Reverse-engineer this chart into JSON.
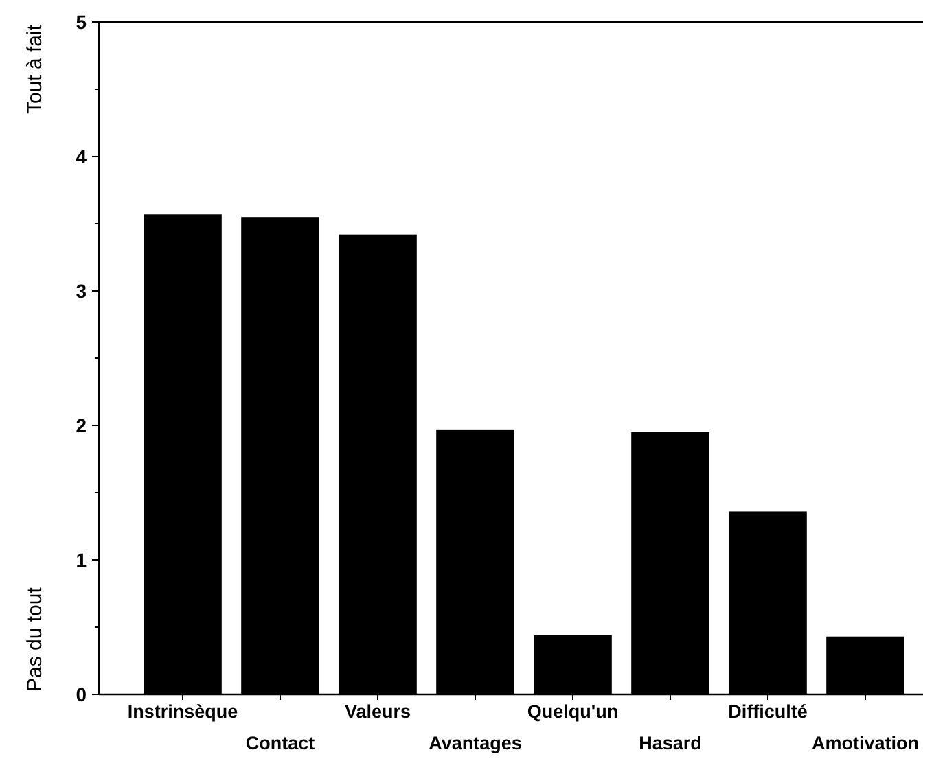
{
  "chart_data": {
    "type": "bar",
    "categories": [
      "Instrinsèque",
      "Contact",
      "Valeurs",
      "Avantages",
      "Quelqu'un",
      "Hasard",
      "Difficulté",
      "Amotivation"
    ],
    "values": [
      3.57,
      3.55,
      3.42,
      1.97,
      0.44,
      1.95,
      1.36,
      0.43
    ],
    "color": "#000000",
    "ylim": [
      0,
      5
    ],
    "yticks": [
      0,
      {
        "value": 0.5,
        "label": null
      },
      1,
      {
        "value": 1.5,
        "label": null
      },
      2,
      {
        "value": 2.5,
        "label": null
      },
      3,
      {
        "value": 3.5,
        "label": null
      },
      4,
      {
        "value": 4.5,
        "label": null
      },
      5
    ],
    "ylabel": "Pas du tout",
    "annotations": [
      "Tout à fait"
    ],
    "grid": false
  }
}
